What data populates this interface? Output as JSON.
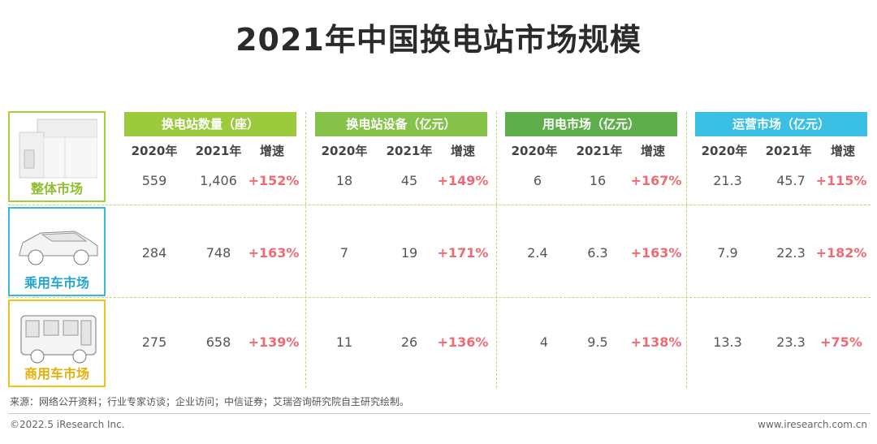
{
  "title": "2021年中国换电站市场规模",
  "col_groups": [
    {
      "label": "换电站数量（座）",
      "color": "#9bcb3c"
    },
    {
      "label": "换电站设备（亿元）",
      "color": "#86c24a"
    },
    {
      "label": "用电市场（亿元）",
      "color": "#5fae4b"
    },
    {
      "label": "运营市场（亿元）",
      "color": "#3bc0e5"
    }
  ],
  "sub_headers": [
    "2020年",
    "2021年",
    "增速"
  ],
  "rows": [
    {
      "label": "整体市场",
      "color": "#a6cf3e",
      "values": [
        "559",
        "1,406",
        "+152%",
        "18",
        "45",
        "+149%",
        "6",
        "16",
        "+167%",
        "21.3",
        "45.7",
        "+115%"
      ]
    },
    {
      "label": "乘用车市场",
      "color": "#3ab6e0",
      "values": [
        "284",
        "748",
        "+163%",
        "7",
        "19",
        "+171%",
        "2.4",
        "6.3",
        "+163%",
        "7.9",
        "22.3",
        "+182%"
      ]
    },
    {
      "label": "商用车市场",
      "color": "#f2c21a",
      "values": [
        "275",
        "658",
        "+139%",
        "11",
        "26",
        "+136%",
        "4",
        "9.5",
        "+138%",
        "13.3",
        "23.3",
        "+75%"
      ]
    }
  ],
  "source": "来源：网络公开资料；行业专家访谈；企业访问；中信证券；艾瑞咨询研究院自主研究绘制。",
  "footer_left": "©2022.5 iResearch Inc.",
  "footer_right": "www.iresearch.com.cn",
  "icons": [
    "battery-swap-station-icon",
    "suv-car-icon",
    "bus-icon"
  ]
}
